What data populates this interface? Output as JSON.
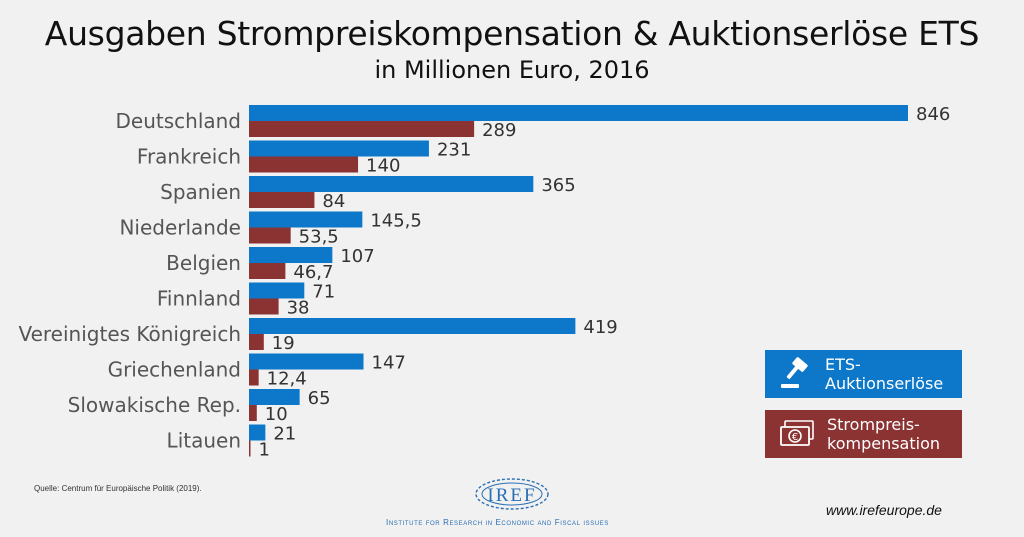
{
  "chart_data": {
    "type": "bar",
    "orientation": "horizontal",
    "title": "Ausgaben Strompreiskompensation & Auktionserlöse ETS",
    "subtitle": "in Millionen Euro, 2016",
    "categories": [
      "Deutschland",
      "Frankreich",
      "Spanien",
      "Niederlande",
      "Belgien",
      "Finnland",
      "Vereinigtes Königreich",
      "Griechenland",
      "Slowakische Rep.",
      "Litauen"
    ],
    "series": [
      {
        "name": "ETS-Auktionserlöse",
        "color": "#0d78c9",
        "values": [
          846,
          231,
          365,
          145.5,
          107,
          71,
          419,
          147,
          65,
          21
        ],
        "labels": [
          "846",
          "231",
          "365",
          "145,5",
          "107",
          "71",
          "419",
          "147",
          "65",
          "21"
        ]
      },
      {
        "name": "Strompreiskompensation",
        "color": "#8b3232",
        "values": [
          289,
          140,
          84,
          53.5,
          46.7,
          38,
          19,
          12.4,
          10,
          1
        ],
        "labels": [
          "289",
          "140",
          "84",
          "53,5",
          "46,7",
          "38",
          "19",
          "12,4",
          "10",
          "1"
        ]
      }
    ],
    "xlim": [
      0,
      846
    ],
    "grid": false,
    "legend_position": "bottom-right"
  },
  "legend": {
    "ets_line1": "ETS-",
    "ets_line2": "Auktionserlöse",
    "strom_line1": "Strompreis-",
    "strom_line2": "kompensation",
    "ets_icon": "gavel-icon",
    "strom_icon": "euro-banknote-icon"
  },
  "source": "Quelle: Centrum für Europäische Politik (2019).",
  "logo": {
    "text": "IREF",
    "tagline": "Institute for Research in Economic and Fiscal issues"
  },
  "website": "www.irefeurope.de"
}
